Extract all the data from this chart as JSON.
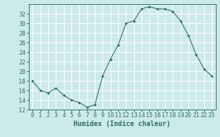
{
  "x": [
    0,
    1,
    2,
    3,
    4,
    5,
    6,
    7,
    8,
    9,
    10,
    11,
    12,
    13,
    14,
    15,
    16,
    17,
    18,
    19,
    20,
    21,
    22,
    23
  ],
  "y": [
    18,
    16,
    15.5,
    16.5,
    15,
    14,
    13.5,
    12.5,
    13,
    19,
    22.5,
    25.5,
    30,
    30.5,
    33,
    33.5,
    33,
    33,
    32.5,
    30.5,
    27.5,
    23.5,
    20.5,
    19
  ],
  "line_color": "#2d6e65",
  "marker": "D",
  "marker_size": 1.8,
  "bg_color": "#cdeaea",
  "grid_color": "#ffffff",
  "xlabel": "Humidex (Indice chaleur)",
  "xlabel_fontsize": 7,
  "tick_fontsize": 6,
  "ylim": [
    12,
    34
  ],
  "yticks": [
    12,
    14,
    16,
    18,
    20,
    22,
    24,
    26,
    28,
    30,
    32
  ],
  "xticks": [
    0,
    1,
    2,
    3,
    4,
    5,
    6,
    7,
    8,
    9,
    10,
    11,
    12,
    13,
    14,
    15,
    16,
    17,
    18,
    19,
    20,
    21,
    22,
    23
  ]
}
